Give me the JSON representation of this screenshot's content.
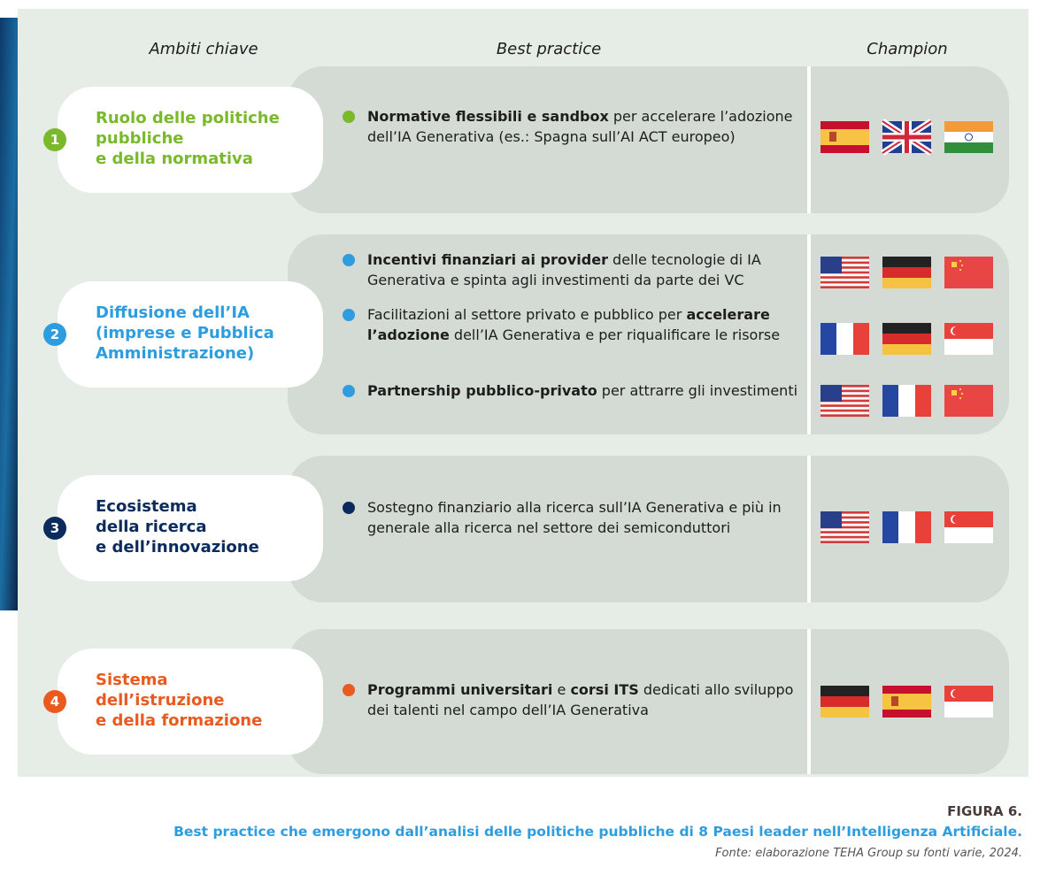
{
  "columns": {
    "areas": "Ambiti chiave",
    "practices": "Best practice",
    "champions": "Champion"
  },
  "rows": [
    {
      "number": "1",
      "area": [
        "Ruolo delle politiche",
        "pubbliche",
        "e della normativa"
      ],
      "practices": [
        {
          "parts": [
            {
              "text": "Normative flessibili e sandbox",
              "bold": true
            },
            {
              "text": " per accelerare l’adozione dell’IA Generativa (es.: Spagna sull’AI ACT europeo)",
              "bold": false
            }
          ]
        }
      ]
    },
    {
      "number": "2",
      "area": [
        "Diffusione dell’IA",
        "(imprese e Pubblica",
        "Amministrazione)"
      ],
      "practices": [
        {
          "parts": [
            {
              "text": "Incentivi finanziari ai provider",
              "bold": true
            },
            {
              "text": " delle tecnologie di IA Generativa e spinta agli investimenti da parte dei VC",
              "bold": false
            }
          ]
        },
        {
          "parts": [
            {
              "text": "Facilitazioni al settore privato e pubblico per ",
              "bold": false
            },
            {
              "text": "accelerare l’adozione",
              "bold": true
            },
            {
              "text": " dell’IA Generativa e per riqualificare le risorse",
              "bold": false
            }
          ]
        },
        {
          "parts": [
            {
              "text": "Partnership pubblico-privato",
              "bold": true
            },
            {
              "text": " per attrarre gli investimenti",
              "bold": false
            }
          ]
        }
      ]
    },
    {
      "number": "3",
      "area": [
        "Ecosistema",
        "della ricerca",
        "e dell’innovazione"
      ],
      "practices": [
        {
          "parts": [
            {
              "text": "Sostegno finanziario alla ricerca sull’IA Generativa e più in generale alla ricerca nel settore dei semiconduttori",
              "bold": false
            }
          ]
        }
      ]
    },
    {
      "number": "4",
      "area": [
        "Sistema",
        "dell’istruzione",
        "e della formazione"
      ],
      "practices": [
        {
          "parts": [
            {
              "text": "Programmi universitari",
              "bold": true
            },
            {
              "text": " e ",
              "bold": false
            },
            {
              "text": "corsi ITS",
              "bold": true
            },
            {
              "text": " dedicati allo sviluppo dei talenti nel campo dell’IA Generativa",
              "bold": false
            }
          ]
        }
      ]
    }
  ],
  "caption": {
    "figure": "FIGURA 6.",
    "title": "Best practice che emergono dall’analisi delle politiche pubbliche di 8 Paesi leader nell’Intelligenza Artificiale.",
    "source": "Fonte: elaborazione TEHA Group su fonti varie, 2024."
  }
}
